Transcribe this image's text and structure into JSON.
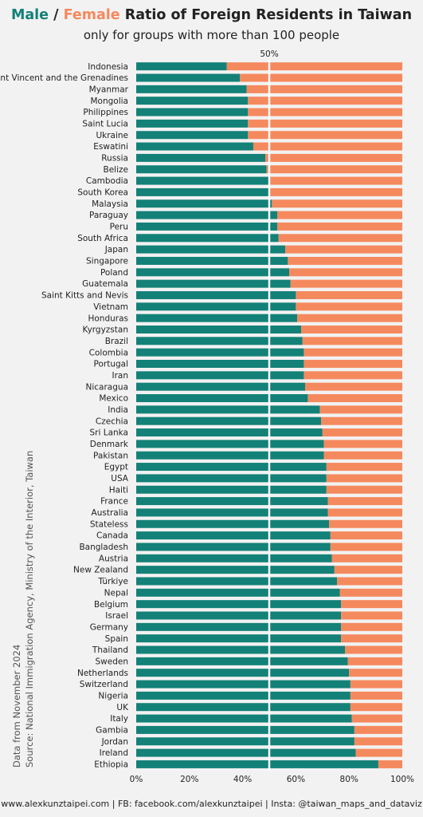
{
  "title": {
    "male": "Male",
    "slash": " / ",
    "female": "Female",
    "rest": " Ratio of Foreign Residents in Taiwan"
  },
  "subtitle": "only for groups with more than 100 people",
  "side_note": {
    "line1": "Data from November 2024",
    "line2": "Source: National Immigration Agency, Ministry of the Interior, Taiwan"
  },
  "footer": "www.alexkunztaipei.com  |  FB: facebook.com/alexkunztaipei  |  Insta: @taiwan_maps_and_dataviz",
  "colors": {
    "male": "#138178",
    "female": "#f5895e",
    "reference_line": "#ffffff"
  },
  "chart_data": {
    "type": "bar",
    "orientation": "horizontal",
    "stacked": true,
    "reference_line": {
      "value": 50,
      "label": "50%"
    },
    "xlim": [
      0,
      100
    ],
    "x_ticks": [
      "0%",
      "20%",
      "40%",
      "60%",
      "80%",
      "100%"
    ],
    "series": [
      {
        "name": "Male",
        "color": "#138178",
        "values": [
          34,
          39,
          41.5,
          42,
          42,
          42,
          42,
          44,
          48.5,
          49,
          50,
          50,
          51,
          53,
          53,
          53.5,
          56,
          57,
          57.5,
          58,
          60,
          60,
          60.5,
          62,
          62.5,
          63,
          63,
          63,
          63.5,
          64.5,
          69,
          69.5,
          70,
          70.5,
          70.5,
          71.5,
          71.5,
          71.5,
          72,
          72,
          72.5,
          73,
          73,
          73.5,
          74.5,
          75.5,
          76.5,
          77,
          77,
          77,
          77,
          78.5,
          79.5,
          80,
          80.5,
          80.5,
          80.5,
          81,
          82,
          82,
          82.5,
          91
        ]
      },
      {
        "name": "Female",
        "color": "#f5895e",
        "values": [
          66,
          61,
          58.5,
          58,
          58,
          58,
          58,
          56,
          51.5,
          51,
          50,
          50,
          49,
          47,
          47,
          46.5,
          44,
          43,
          42.5,
          42,
          40,
          40,
          39.5,
          38,
          37.5,
          37,
          37,
          37,
          36.5,
          35.5,
          31,
          30.5,
          30,
          29.5,
          29.5,
          28.5,
          28.5,
          28.5,
          28,
          28,
          27.5,
          27,
          27,
          26.5,
          25.5,
          24.5,
          23.5,
          23,
          23,
          23,
          23,
          21.5,
          20.5,
          20,
          19.5,
          19.5,
          19.5,
          19,
          18,
          18,
          17.5,
          9
        ]
      }
    ],
    "categories": [
      "Indonesia",
      "Saint Vincent and the Grenadines",
      "Myanmar",
      "Mongolia",
      "Philippines",
      "Saint Lucia",
      "Ukraine",
      "Eswatini",
      "Russia",
      "Belize",
      "Cambodia",
      "South Korea",
      "Malaysia",
      "Paraguay",
      "Peru",
      "South Africa",
      "Japan",
      "Singapore",
      "Poland",
      "Guatemala",
      "Saint Kitts and Nevis",
      "Vietnam",
      "Honduras",
      "Kyrgyzstan",
      "Brazil",
      "Colombia",
      "Portugal",
      "Iran",
      "Nicaragua",
      "Mexico",
      "India",
      "Czechia",
      "Sri Lanka",
      "Denmark",
      "Pakistan",
      "Egypt",
      "USA",
      "Haiti",
      "France",
      "Australia",
      "Stateless",
      "Canada",
      "Bangladesh",
      "Austria",
      "New Zealand",
      "Türkiye",
      "Nepal",
      "Belgium",
      "Israel",
      "Germany",
      "Spain",
      "Thailand",
      "Sweden",
      "Netherlands",
      "Switzerland",
      "Nigeria",
      "UK",
      "Italy",
      "Gambia",
      "Jordan",
      "Ireland",
      "Ethiopia"
    ]
  }
}
